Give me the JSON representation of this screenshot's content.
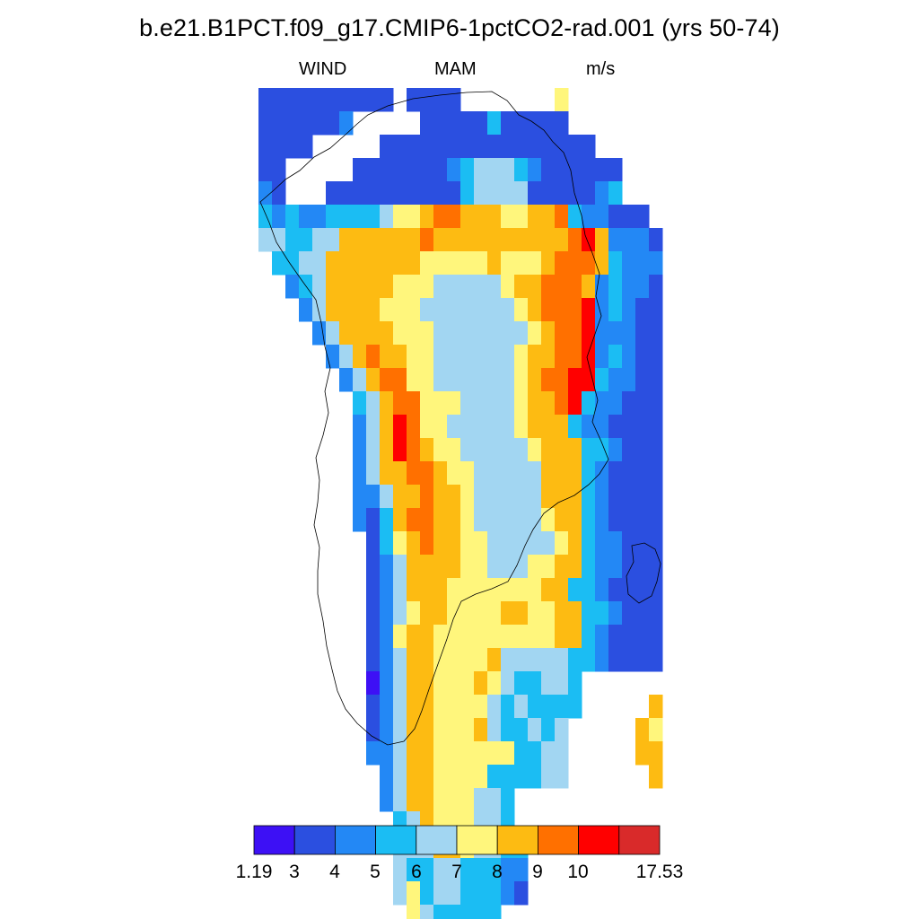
{
  "figure": {
    "title": "b.e21.B1PCT.f09_g17.CMIP6-1pctCO2-rad.001 (yrs 50-74)",
    "left_string": "WIND",
    "center_string": "MAM",
    "right_string": "m/s"
  },
  "legend": {
    "colors": [
      "#3d10f5",
      "#2b4fe0",
      "#2388f5",
      "#1bbdf3",
      "#a2d6f2",
      "#fff67c",
      "#fdbb12",
      "#ff7000",
      "#ff0000",
      "#d92a2a"
    ],
    "labels": [
      "1.19",
      "3",
      "4",
      "5",
      "6",
      "7",
      "8",
      "9",
      "10",
      "17.53"
    ]
  },
  "field_colors": {
    "1": "#3d10f5",
    "2": "#2b4fe0",
    "3": "#2388f5",
    "4": "#1bbdf3",
    "5": "#a2d6f2",
    "6": "#fff67c",
    "7": "#fdbb12",
    "8": "#ff7000",
    "9": "#ff0000"
  }
}
